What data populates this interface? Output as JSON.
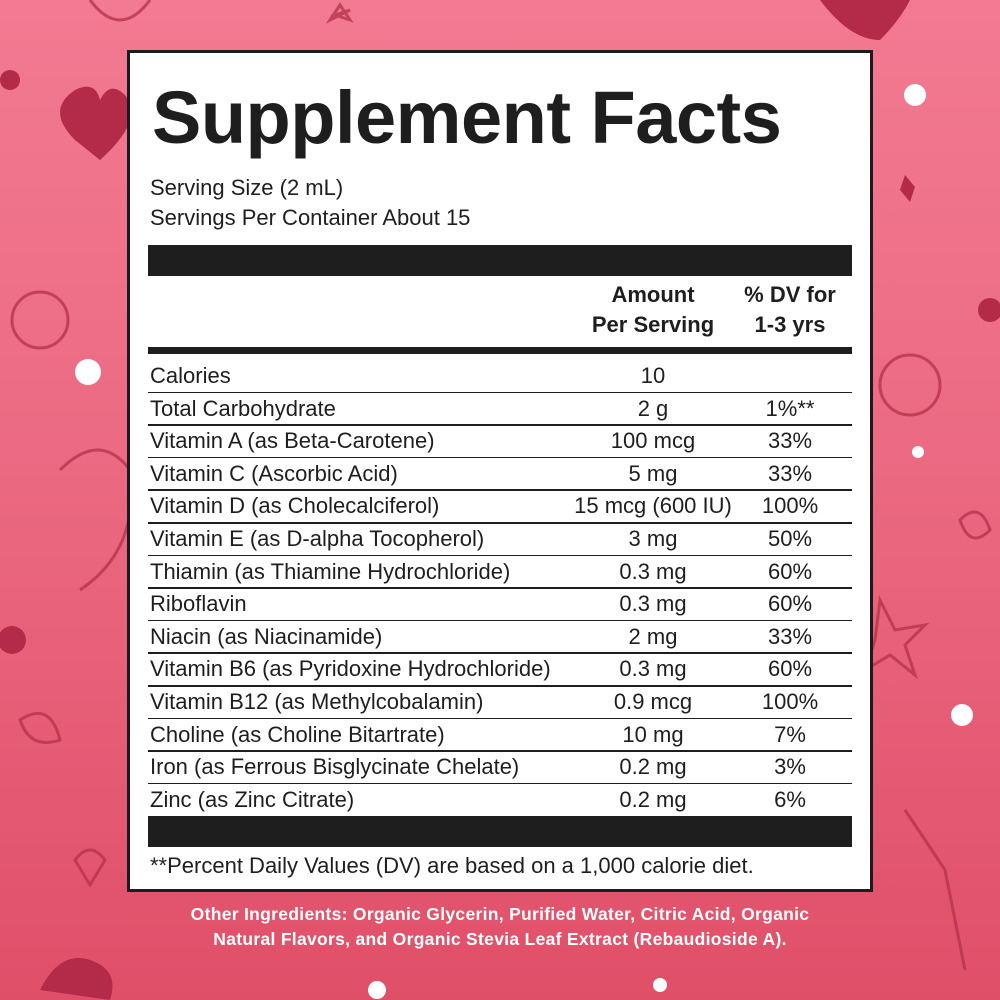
{
  "title": "Supplement Facts",
  "serving_size": "Serving Size (2 mL)",
  "servings_per_container": "Servings Per Container About 15",
  "header": {
    "amount": [
      "Amount",
      "Per Serving"
    ],
    "dv": [
      "% DV for",
      "1-3 yrs"
    ]
  },
  "rows": [
    {
      "name": "Calories",
      "amount": "10"
    },
    {
      "name": "Total Carbohydrate",
      "amount": "2 g",
      "dv": "1%**"
    },
    {
      "name": "Vitamin A (as Beta-Carotene)",
      "amount": "100 mcg",
      "dv": "33%"
    },
    {
      "name": "Vitamin C (Ascorbic Acid)",
      "amount": "5 mg",
      "dv": "33%"
    },
    {
      "name": "Vitamin D (as Cholecalciferol)",
      "amount": "15 mcg (600 IU)",
      "dv": "100%"
    },
    {
      "name": "Vitamin E (as D-alpha Tocopherol)",
      "amount": "3 mg",
      "dv": "50%"
    },
    {
      "name": "Thiamin (as Thiamine Hydrochloride)",
      "amount": "0.3 mg",
      "dv": "60%"
    },
    {
      "name": "Riboflavin",
      "amount": "0.3 mg",
      "dv": "60%"
    },
    {
      "name": "Niacin (as Niacinamide)",
      "amount": "2 mg",
      "dv": "33%"
    },
    {
      "name": "Vitamin B6 (as Pyridoxine Hydrochloride)",
      "amount": "0.3 mg",
      "dv": "60%"
    },
    {
      "name": "Vitamin B12 (as Methylcobalamin)",
      "amount": "0.9 mcg",
      "dv": "100%"
    },
    {
      "name": "Choline (as Choline Bitartrate)",
      "amount": "10 mg",
      "dv": "7%"
    },
    {
      "name": "Iron (as Ferrous Bisglycinate Chelate)",
      "amount": "0.2 mg",
      "dv": "3%"
    },
    {
      "name": "Zinc (as Zinc Citrate)",
      "amount": "0.2 mg",
      "dv": "6%"
    }
  ],
  "footnote": "**Percent Daily Values (DV) are based on a 1,000 calorie diet.",
  "other_ingredients": [
    "Other Ingredients: Organic Glycerin, Purified Water, Citric Acid, Organic",
    "Natural Flavors, and Organic Stevia Leaf Extract (Rebaudioside A)."
  ]
}
